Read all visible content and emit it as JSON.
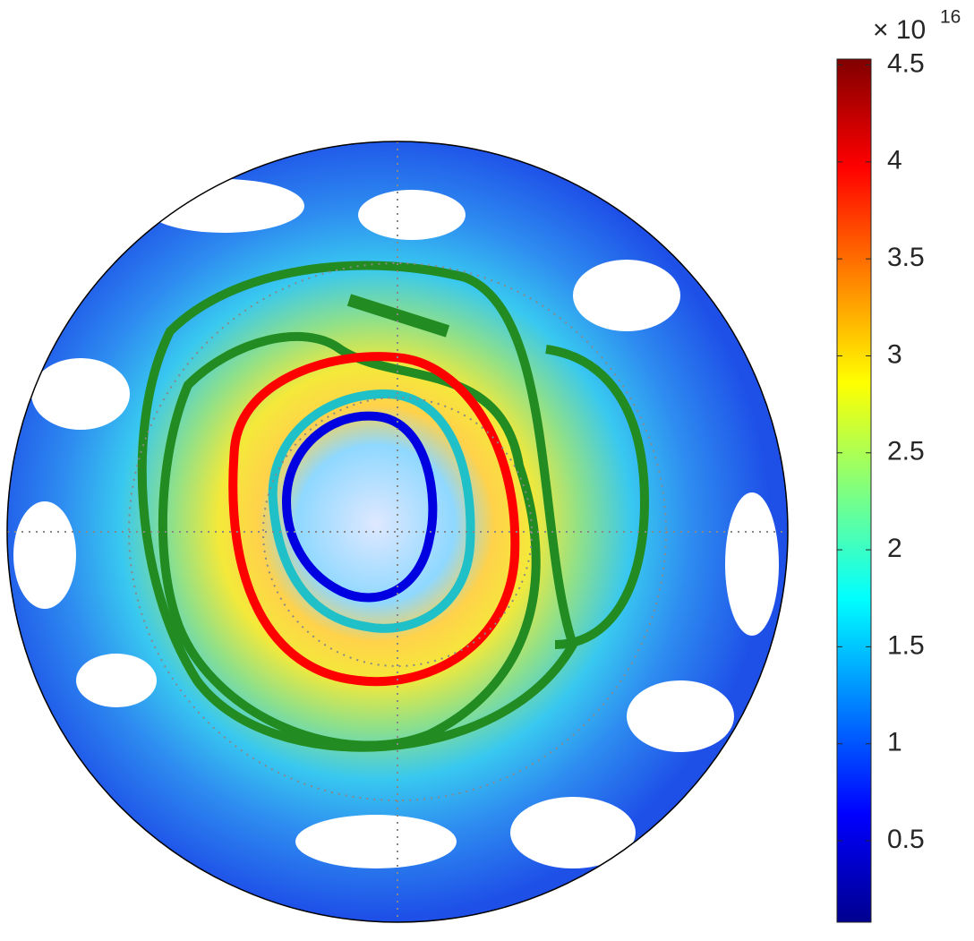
{
  "colorbar": {
    "multiplier": "× 10",
    "exponent": "16",
    "limits": [
      0.08,
      4.53
    ],
    "ticks": [
      0.5,
      1,
      1.5,
      2,
      2.5,
      3,
      3.5,
      4,
      4.5
    ]
  }
}
